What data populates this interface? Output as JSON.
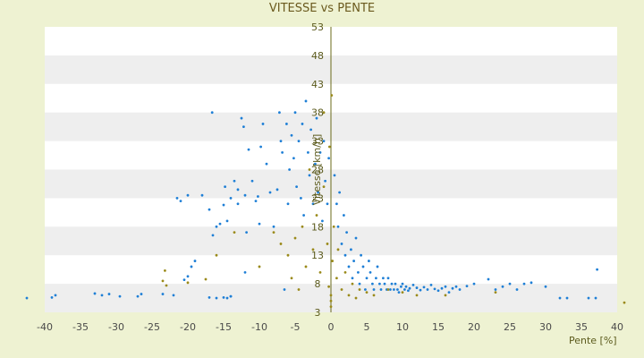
{
  "chart_data": {
    "type": "scatter",
    "title": "VITESSE vs PENTE",
    "xlabel": "Pente [%]",
    "ylabel": "Vitesse [km/h]",
    "xlim": [
      -40,
      40
    ],
    "ylim": [
      3,
      53
    ],
    "x_ticks": [
      "-40",
      "-35",
      "-30",
      "-25",
      "-20",
      "-15",
      "-10",
      "-5",
      "0",
      "5",
      "10",
      "15",
      "20",
      "25",
      "30",
      "35",
      "40"
    ],
    "y_ticks": [
      "3",
      "8",
      "13",
      "18",
      "23",
      "28",
      "33",
      "38",
      "43",
      "48",
      "53"
    ],
    "grid": "horizontal bands",
    "colors": {
      "series_blue": "#1e7fd6",
      "series_olive": "#9a8a1a",
      "band": "#eeeeee",
      "plot_bg": "#ffffff",
      "page_bg": "#eef2d2",
      "axis_line": "#6b6b1a"
    },
    "series": [
      {
        "color": "#1e7fd6",
        "points": [
          [
            -42.5,
            5.5
          ],
          [
            -39,
            5.6
          ],
          [
            -38.5,
            6
          ],
          [
            -33,
            6.3
          ],
          [
            -32,
            6
          ],
          [
            -31,
            6.2
          ],
          [
            -29.5,
            5.8
          ],
          [
            -27,
            5.8
          ],
          [
            -26.5,
            6.2
          ],
          [
            -23.5,
            6.2
          ],
          [
            -22,
            6
          ],
          [
            -20.5,
            8.7
          ],
          [
            -20,
            9.3
          ],
          [
            -19.5,
            11
          ],
          [
            -19,
            12
          ],
          [
            -21.5,
            23
          ],
          [
            -21,
            22.5
          ],
          [
            -20,
            23.5
          ],
          [
            -18,
            23.5
          ],
          [
            -17,
            21
          ],
          [
            -16.5,
            16.5
          ],
          [
            -16,
            18
          ],
          [
            -15.5,
            18.5
          ],
          [
            -15,
            21.8
          ],
          [
            -14.8,
            25
          ],
          [
            -14.5,
            19
          ],
          [
            -14,
            5.8
          ],
          [
            -14.5,
            5.5
          ],
          [
            -14,
            23
          ],
          [
            -13.5,
            26
          ],
          [
            -13,
            22
          ],
          [
            -13,
            24.5
          ],
          [
            -12.5,
            37
          ],
          [
            -12.2,
            35.5
          ],
          [
            -12,
            23.5
          ],
          [
            -11.8,
            17
          ],
          [
            -11.5,
            31.5
          ],
          [
            -11,
            26
          ],
          [
            -10.5,
            22.5
          ],
          [
            -10.2,
            23.3
          ],
          [
            -10,
            18.5
          ],
          [
            -9.8,
            32
          ],
          [
            -9.5,
            36
          ],
          [
            -9,
            29
          ],
          [
            -8.5,
            24
          ],
          [
            -8,
            18
          ],
          [
            -7.5,
            24.5
          ],
          [
            -7.2,
            38
          ],
          [
            -7,
            33
          ],
          [
            -6.8,
            31
          ],
          [
            -6.5,
            7
          ],
          [
            -6.2,
            36
          ],
          [
            -6,
            22
          ],
          [
            -5.8,
            28
          ],
          [
            -5.5,
            34
          ],
          [
            -5.2,
            30
          ],
          [
            -5,
            38
          ],
          [
            -4.8,
            25
          ],
          [
            -4.5,
            33
          ],
          [
            -4.2,
            23
          ],
          [
            -4,
            36
          ],
          [
            -3.8,
            20
          ],
          [
            -3.5,
            40
          ],
          [
            -3.2,
            31
          ],
          [
            -3,
            27
          ],
          [
            -2.8,
            35
          ],
          [
            -2.5,
            22
          ],
          [
            -2.2,
            29
          ],
          [
            -2,
            37
          ],
          [
            -1.8,
            24
          ],
          [
            -1.5,
            31
          ],
          [
            -1.2,
            19
          ],
          [
            -1,
            33
          ],
          [
            -0.8,
            26
          ],
          [
            -0.5,
            22
          ],
          [
            -0.3,
            30
          ],
          [
            -16,
            5.5
          ],
          [
            -15,
            5.6
          ],
          [
            -14,
            5.8
          ],
          [
            -12,
            10
          ],
          [
            -17,
            5.6
          ],
          [
            -16.6,
            38
          ],
          [
            0.5,
            27
          ],
          [
            0.8,
            22
          ],
          [
            1,
            18
          ],
          [
            1.2,
            24
          ],
          [
            1.5,
            15
          ],
          [
            1.8,
            20
          ],
          [
            2,
            13
          ],
          [
            2.2,
            17
          ],
          [
            2.5,
            11
          ],
          [
            2.8,
            14
          ],
          [
            3,
            9
          ],
          [
            3.2,
            12
          ],
          [
            3.5,
            16
          ],
          [
            3.8,
            10
          ],
          [
            4,
            8
          ],
          [
            4.2,
            13
          ],
          [
            4.5,
            11
          ],
          [
            4.8,
            7
          ],
          [
            5,
            9
          ],
          [
            5.3,
            12
          ],
          [
            5.5,
            10
          ],
          [
            5.8,
            8
          ],
          [
            6,
            7
          ],
          [
            6.3,
            9
          ],
          [
            6.5,
            11
          ],
          [
            6.8,
            8
          ],
          [
            7,
            7
          ],
          [
            7.3,
            9
          ],
          [
            7.5,
            8
          ],
          [
            7.8,
            7
          ],
          [
            8,
            9
          ],
          [
            8.3,
            7
          ],
          [
            8.5,
            8
          ],
          [
            8.8,
            7
          ],
          [
            9,
            8
          ],
          [
            9.3,
            7
          ],
          [
            9.5,
            6.5
          ],
          [
            9.8,
            7.5
          ],
          [
            10,
            8
          ],
          [
            10.3,
            7
          ],
          [
            10.5,
            7.5
          ],
          [
            10.8,
            6.8
          ],
          [
            11,
            7.2
          ],
          [
            11.5,
            7.8
          ],
          [
            12,
            7.3
          ],
          [
            12.5,
            6.9
          ],
          [
            13,
            7.4
          ],
          [
            13.5,
            7
          ],
          [
            14,
            7.8
          ],
          [
            14.5,
            7.1
          ],
          [
            15,
            6.8
          ],
          [
            15.5,
            7.2
          ],
          [
            16,
            7.5
          ],
          [
            16.5,
            6.5
          ],
          [
            17,
            7.2
          ],
          [
            17.5,
            7.5
          ],
          [
            18,
            7
          ],
          [
            19,
            7.6
          ],
          [
            20,
            8
          ],
          [
            22,
            8.8
          ],
          [
            23,
            7
          ],
          [
            24,
            7.5
          ],
          [
            25,
            8
          ],
          [
            26,
            7
          ],
          [
            27,
            8
          ],
          [
            28,
            8.2
          ],
          [
            30,
            7.5
          ],
          [
            32,
            5.5
          ],
          [
            33,
            5.5
          ],
          [
            36,
            5.5
          ],
          [
            37,
            5.5
          ],
          [
            37.2,
            10.5
          ]
        ]
      },
      {
        "color": "#9a8a1a",
        "points": [
          [
            -23.5,
            8.5
          ],
          [
            -23.2,
            10.3
          ],
          [
            -23,
            7.7
          ],
          [
            -20,
            8.2
          ],
          [
            -17.5,
            8.8
          ],
          [
            -16,
            13
          ],
          [
            -13.5,
            17
          ],
          [
            -10,
            11
          ],
          [
            -8,
            17
          ],
          [
            -7,
            15
          ],
          [
            -6,
            13
          ],
          [
            -5.5,
            9
          ],
          [
            -5,
            16
          ],
          [
            -4.5,
            7
          ],
          [
            -4,
            18
          ],
          [
            -3.5,
            11
          ],
          [
            -3,
            28
          ],
          [
            -2.5,
            14
          ],
          [
            -2,
            20
          ],
          [
            -1.5,
            10
          ],
          [
            -1,
            25
          ],
          [
            -0.5,
            15
          ],
          [
            -0.3,
            7.5
          ],
          [
            0,
            5
          ],
          [
            0,
            4
          ],
          [
            0,
            6
          ],
          [
            0.2,
            12
          ],
          [
            0.4,
            18
          ],
          [
            0.8,
            9
          ],
          [
            1,
            14
          ],
          [
            1.5,
            7
          ],
          [
            2,
            10
          ],
          [
            2.5,
            6
          ],
          [
            3,
            8
          ],
          [
            3.5,
            5.5
          ],
          [
            4,
            7
          ],
          [
            5,
            6.5
          ],
          [
            6,
            6
          ],
          [
            8,
            7
          ],
          [
            10,
            6.5
          ],
          [
            12,
            6
          ],
          [
            16,
            6
          ],
          [
            23,
            6.5
          ],
          [
            41,
            4.7
          ],
          [
            -0.2,
            32
          ],
          [
            -1,
            38
          ],
          [
            0.1,
            41
          ]
        ]
      }
    ]
  }
}
